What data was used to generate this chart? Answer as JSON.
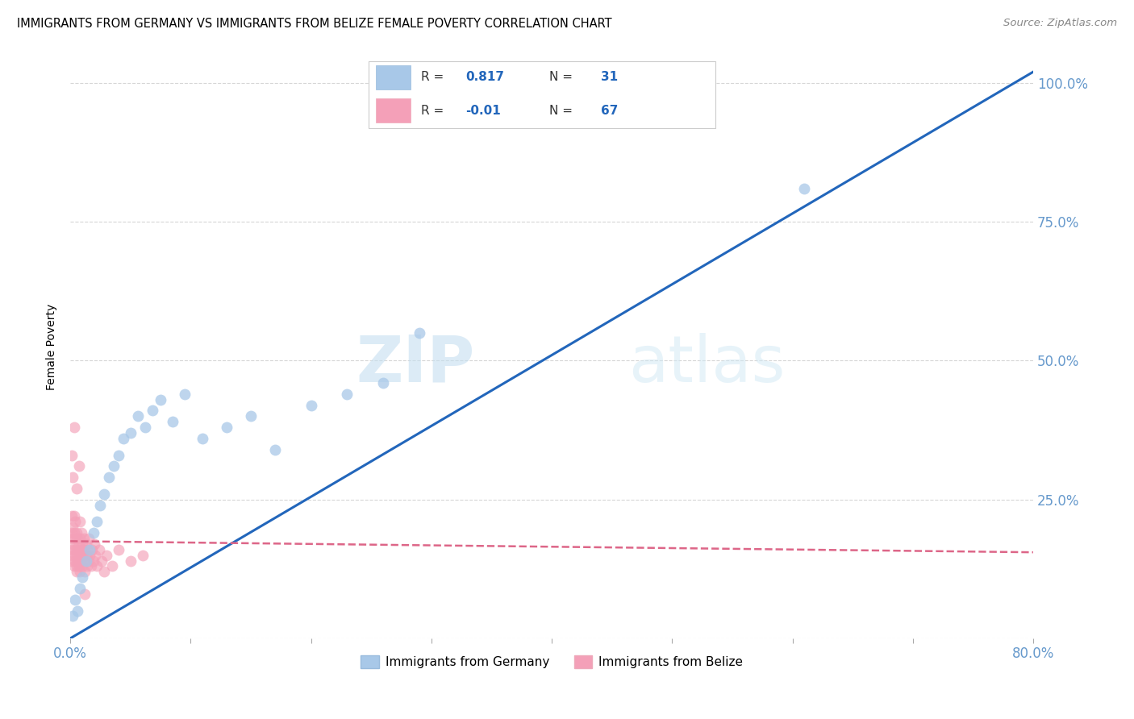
{
  "title": "IMMIGRANTS FROM GERMANY VS IMMIGRANTS FROM BELIZE FEMALE POVERTY CORRELATION CHART",
  "source": "Source: ZipAtlas.com",
  "ylabel": "Female Poverty",
  "xlim": [
    0.0,
    0.8
  ],
  "ylim": [
    0.0,
    1.05
  ],
  "watermark_zip": "ZIP",
  "watermark_atlas": "atlas",
  "legend_germany": "Immigrants from Germany",
  "legend_belize": "Immigrants from Belize",
  "r_germany": 0.817,
  "n_germany": 31,
  "r_belize": -0.01,
  "n_belize": 67,
  "color_germany": "#a8c8e8",
  "color_belize": "#f4a0b8",
  "color_line_germany": "#2266bb",
  "color_line_belize": "#dd6688",
  "color_tick": "#6699cc",
  "germany_x": [
    0.002,
    0.004,
    0.006,
    0.008,
    0.01,
    0.013,
    0.016,
    0.019,
    0.022,
    0.025,
    0.028,
    0.032,
    0.036,
    0.04,
    0.044,
    0.05,
    0.056,
    0.062,
    0.068,
    0.075,
    0.085,
    0.095,
    0.11,
    0.13,
    0.15,
    0.17,
    0.2,
    0.23,
    0.26,
    0.29,
    0.61
  ],
  "germany_y": [
    0.04,
    0.07,
    0.05,
    0.09,
    0.11,
    0.14,
    0.16,
    0.19,
    0.21,
    0.24,
    0.26,
    0.29,
    0.31,
    0.33,
    0.36,
    0.37,
    0.4,
    0.38,
    0.41,
    0.43,
    0.39,
    0.44,
    0.36,
    0.38,
    0.4,
    0.34,
    0.42,
    0.44,
    0.46,
    0.55,
    0.81
  ],
  "belize_x": [
    0.001,
    0.001,
    0.001,
    0.001,
    0.002,
    0.002,
    0.002,
    0.002,
    0.003,
    0.003,
    0.003,
    0.003,
    0.004,
    0.004,
    0.004,
    0.004,
    0.005,
    0.005,
    0.005,
    0.005,
    0.006,
    0.006,
    0.006,
    0.007,
    0.007,
    0.007,
    0.008,
    0.008,
    0.008,
    0.009,
    0.009,
    0.009,
    0.01,
    0.01,
    0.01,
    0.011,
    0.011,
    0.012,
    0.012,
    0.013,
    0.013,
    0.014,
    0.014,
    0.015,
    0.015,
    0.016,
    0.017,
    0.018,
    0.019,
    0.02,
    0.021,
    0.022,
    0.024,
    0.026,
    0.028,
    0.03,
    0.035,
    0.04,
    0.05,
    0.06,
    0.001,
    0.002,
    0.003,
    0.005,
    0.007,
    0.008,
    0.012
  ],
  "belize_y": [
    0.16,
    0.19,
    0.22,
    0.14,
    0.17,
    0.2,
    0.15,
    0.18,
    0.13,
    0.16,
    0.19,
    0.22,
    0.15,
    0.18,
    0.14,
    0.21,
    0.13,
    0.16,
    0.19,
    0.12,
    0.15,
    0.18,
    0.14,
    0.17,
    0.13,
    0.16,
    0.15,
    0.18,
    0.12,
    0.16,
    0.19,
    0.14,
    0.13,
    0.17,
    0.15,
    0.16,
    0.18,
    0.14,
    0.12,
    0.15,
    0.17,
    0.13,
    0.16,
    0.14,
    0.18,
    0.15,
    0.13,
    0.16,
    0.14,
    0.17,
    0.15,
    0.13,
    0.16,
    0.14,
    0.12,
    0.15,
    0.13,
    0.16,
    0.14,
    0.15,
    0.33,
    0.29,
    0.38,
    0.27,
    0.31,
    0.21,
    0.08
  ],
  "germany_trend": [
    0.0,
    0.8,
    0.0,
    1.02
  ],
  "belize_trend_y": [
    0.175,
    0.155
  ]
}
